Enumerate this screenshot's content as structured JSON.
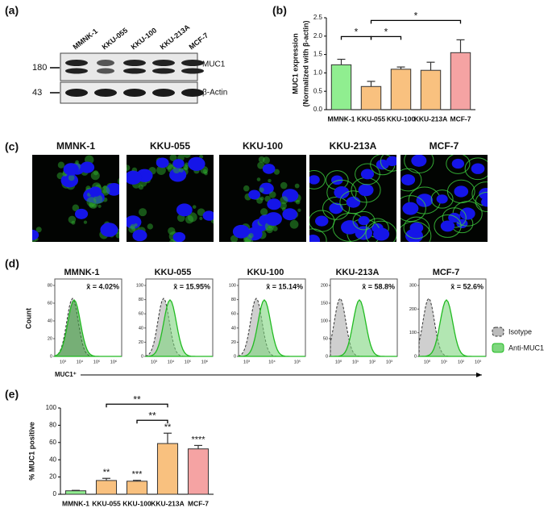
{
  "panels": {
    "a": {
      "label": "(a)",
      "lanes": [
        "MMNK-1",
        "KKU-055",
        "KKU-100",
        "KKU-213A",
        "MCF-7"
      ],
      "markers": [
        180,
        43
      ],
      "proteins": [
        "MUC1",
        "β-Actin"
      ]
    },
    "c": {
      "label": "(c)",
      "titles": [
        "MMNK-1",
        "KKU-055",
        "KKU-100",
        "KKU-213A",
        "MCF-7"
      ]
    },
    "d": {
      "label": "(d)",
      "y_label": "Count",
      "x_label": "MUC1⁺",
      "legend": [
        "Isotype",
        "Anti-MUC1"
      ],
      "plots": [
        {
          "title": "MMNK-1",
          "stat": "x̄ = 4.02%",
          "yticks": [
            0,
            20,
            40,
            60,
            80
          ],
          "xticks": [
            "10³",
            "10⁴",
            "10⁵",
            "10⁶"
          ]
        },
        {
          "title": "KKU-055",
          "stat": "x̄ = 15.95%",
          "yticks": [
            0,
            20,
            40,
            60,
            80,
            100
          ],
          "xticks": [
            "10³",
            "10⁴",
            "10⁵",
            "10⁶"
          ]
        },
        {
          "title": "KKU-100",
          "stat": "x̄ = 15.14%",
          "yticks": [
            0,
            20,
            40,
            60,
            80,
            100
          ],
          "xticks": [
            "10³",
            "10⁴",
            "10⁵"
          ]
        },
        {
          "title": "KKU-213A",
          "stat": "x̄ = 58.8%",
          "yticks": [
            0,
            50,
            100,
            150,
            200
          ],
          "xticks": [
            "10⁰",
            "10¹",
            "10²",
            "10³"
          ]
        },
        {
          "title": "MCF-7",
          "stat": "x̄ = 52.6%",
          "yticks": [
            0,
            100,
            200,
            300
          ],
          "xticks": [
            "10⁰",
            "10¹",
            "10²",
            "10³"
          ]
        }
      ]
    }
  },
  "chart_data": [
    {
      "type": "bar",
      "panel": "(b)",
      "y_label": [
        "MUC1 expression",
        "(Normalized with β-actin)"
      ],
      "categories": [
        "MMNK-1",
        "KKU-055",
        "KKU-100",
        "KKU-213A",
        "MCF-7"
      ],
      "values": [
        1.22,
        0.63,
        1.1,
        1.07,
        1.55
      ],
      "errors": [
        0.15,
        0.14,
        0.06,
        0.22,
        0.35
      ],
      "colors": [
        "#90ee90",
        "#f9c17f",
        "#f9c17f",
        "#f9c17f",
        "#f5a3a3"
      ],
      "ylim": [
        0,
        2.5
      ],
      "yticks": [
        {
          "value": 0,
          "label": "0.0"
        },
        {
          "value": 0.5,
          "label": "0.5"
        },
        {
          "value": 1,
          "label": "1.0"
        },
        {
          "value": 1.5,
          "label": "1.5"
        },
        {
          "value": 2,
          "label": "2.0"
        },
        {
          "value": 2.5,
          "label": "2.5"
        }
      ],
      "significance": [
        {
          "between": [
            "MMNK-1",
            "KKU-055"
          ],
          "label": "*"
        },
        {
          "between": [
            "KKU-055",
            "KKU-100"
          ],
          "label": "*"
        },
        {
          "between": [
            "KKU-055",
            "MCF-7"
          ],
          "label": "*"
        }
      ]
    },
    {
      "type": "bar",
      "panel": "(e)",
      "y_label": [
        "% MUC1 positive"
      ],
      "categories": [
        "MMNK-1",
        "KKU-055",
        "KKU-100",
        "KKU-213A",
        "MCF-7"
      ],
      "values": [
        4.02,
        15.95,
        15.14,
        58.8,
        52.6
      ],
      "errors": [
        0.5,
        2.5,
        1,
        12,
        4
      ],
      "bar_labels": [
        null,
        "**",
        "***",
        "**",
        "****"
      ],
      "colors": [
        "#90ee90",
        "#f9c17f",
        "#f9c17f",
        "#f9c17f",
        "#f5a3a3"
      ],
      "ylim": [
        0,
        100
      ],
      "yticks": [
        0,
        20,
        40,
        60,
        80,
        100
      ],
      "significance": [
        {
          "between": [
            "KKU-100",
            "KKU-213A"
          ],
          "label": "**"
        },
        {
          "between": [
            "KKU-055",
            "KKU-213A"
          ],
          "label": "**"
        }
      ]
    }
  ]
}
